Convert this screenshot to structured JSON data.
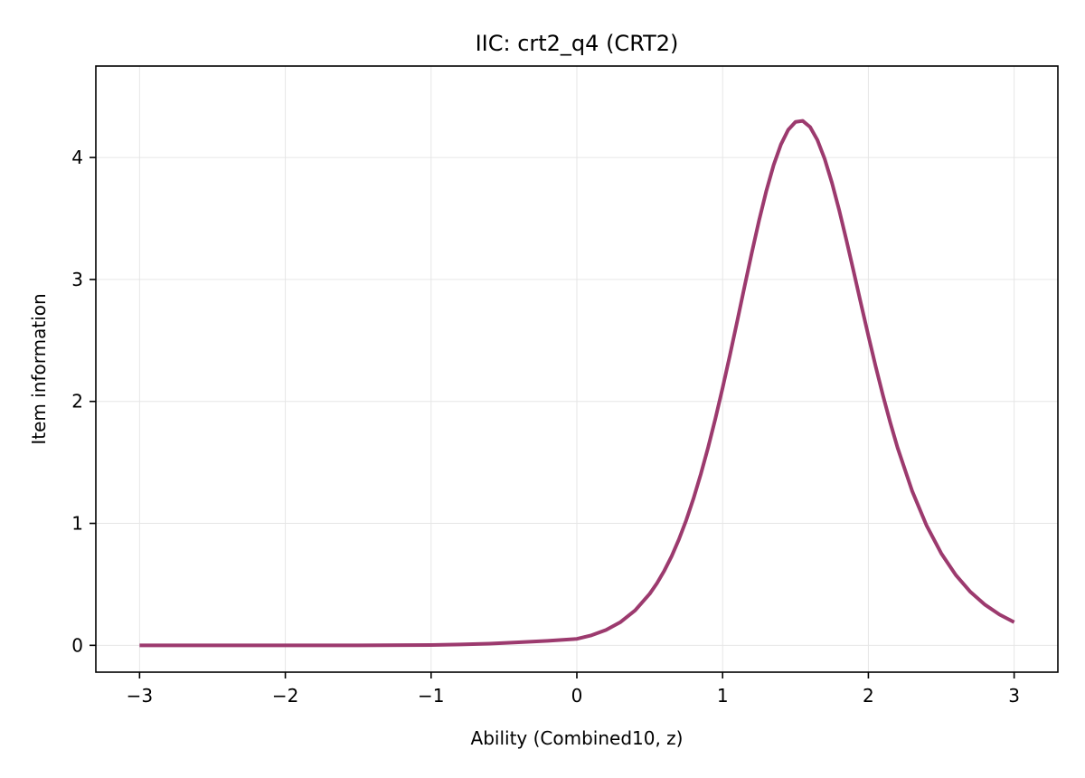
{
  "chart_data": {
    "type": "line",
    "title": "IIC: crt2_q4 (CRT2)",
    "xlabel": "Ability (Combined10, z)",
    "ylabel": "Item information",
    "xlim": [
      -3.3,
      3.3
    ],
    "ylim": [
      -0.22,
      4.75
    ],
    "xticks": [
      -3,
      -2,
      -1,
      0,
      1,
      2,
      3
    ],
    "xtick_labels": [
      "−3",
      "−2",
      "−1",
      "0",
      "1",
      "2",
      "3"
    ],
    "yticks": [
      0,
      1,
      2,
      3,
      4
    ],
    "ytick_labels": [
      "0",
      "1",
      "2",
      "3",
      "4"
    ],
    "grid": true,
    "legend": "none",
    "series": [
      {
        "color": "#9c3a6e",
        "x": [
          -3.0,
          -2.5,
          -2.0,
          -1.5,
          -1.0,
          -0.8,
          -0.6,
          -0.4,
          -0.2,
          0.0,
          0.1,
          0.2,
          0.3,
          0.4,
          0.5,
          0.55,
          0.6,
          0.65,
          0.7,
          0.75,
          0.8,
          0.85,
          0.9,
          0.95,
          1.0,
          1.05,
          1.1,
          1.15,
          1.2,
          1.25,
          1.3,
          1.35,
          1.4,
          1.45,
          1.5,
          1.55,
          1.6,
          1.65,
          1.7,
          1.75,
          1.8,
          1.85,
          1.9,
          1.95,
          2.0,
          2.05,
          2.1,
          2.15,
          2.2,
          2.3,
          2.4,
          2.5,
          2.6,
          2.7,
          2.8,
          2.9,
          3.0
        ],
        "y": [
          0.0,
          0.0,
          0.0,
          0.0,
          0.003,
          0.007,
          0.014,
          0.025,
          0.037,
          0.053,
          0.082,
          0.126,
          0.191,
          0.287,
          0.423,
          0.51,
          0.612,
          0.73,
          0.868,
          1.025,
          1.203,
          1.402,
          1.62,
          1.857,
          2.111,
          2.379,
          2.657,
          2.94,
          3.218,
          3.484,
          3.727,
          3.938,
          4.107,
          4.227,
          4.292,
          4.3,
          4.25,
          4.144,
          3.989,
          3.793,
          3.567,
          3.319,
          3.06,
          2.797,
          2.538,
          2.287,
          2.049,
          1.827,
          1.621,
          1.266,
          0.98,
          0.754,
          0.576,
          0.438,
          0.333,
          0.252,
          0.19
        ]
      }
    ]
  }
}
